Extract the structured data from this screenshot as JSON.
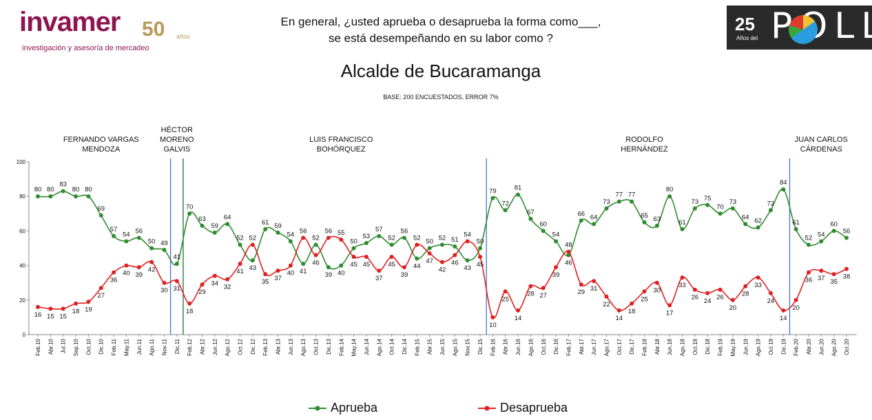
{
  "logo": {
    "name": "invamer",
    "years": "50",
    "years_suffix": "años",
    "tagline": "investigación y asesoría de mercadeo"
  },
  "question": {
    "line1": "En general, ¿usted aprueba o desaprueba la forma como___,",
    "line2": "se está desempeñando en su labor como ?"
  },
  "poll_badge": {
    "number": "25",
    "subtitle": "Años del",
    "word": "POLL"
  },
  "chart_data": {
    "type": "line",
    "title": "Alcalde de Bucaramanga",
    "subtitle": "BASE: 200 ENCUESTADOS, ERROR 7%",
    "xlabel": "",
    "ylabel": "",
    "ylim": [
      0,
      100
    ],
    "yticks": [
      "0",
      "20",
      "40",
      "60",
      "80",
      "100"
    ],
    "grid": false,
    "legend_position": "bottom",
    "categories": [
      "Feb.10",
      "Abr.10",
      "Jul.10",
      "Sep.10",
      "Oct.10",
      "Dic.10",
      "Feb.11",
      "May.11",
      "Jun.11",
      "Ago.11",
      "Nov.11",
      "Dic.11",
      "Feb.12",
      "Abr.12",
      "Jun.12",
      "Ago.12",
      "Oct.12",
      "Dic.12",
      "Feb.13",
      "Abr.13",
      "Jun.13",
      "Ago.13",
      "Oct.13",
      "Dic.13",
      "Feb.14",
      "May.14",
      "Jun.14",
      "Ago.14",
      "Oct.14",
      "Dic.14",
      "Feb.15",
      "Abr.15",
      "Jun.15",
      "Ago.15",
      "Nov.15",
      "Dic.15",
      "Feb.16",
      "Abr.16",
      "Jun.16",
      "Ago.16",
      "Oct.16",
      "Dic.16",
      "Feb.17",
      "Abr.17",
      "Jun.17",
      "Ago.17",
      "Oct.17",
      "Dic.17",
      "Feb.18",
      "Abr.18",
      "Jun.18",
      "Ago.18",
      "Oct.18",
      "Dic.18",
      "Feb.19",
      "May.19",
      "Jun.19",
      "Ago.19",
      "Oct.19",
      "Dic.19",
      "Feb.20",
      "Abr.20",
      "Jun.20",
      "Ago.20",
      "Oct.20"
    ],
    "series": [
      {
        "name": "Aprueba",
        "color": "#2e8b2e",
        "values": [
          80,
          80,
          83,
          80,
          80,
          69,
          57,
          54,
          56,
          50,
          49,
          41,
          70,
          63,
          59,
          64,
          52,
          43,
          61,
          59,
          54,
          41,
          52,
          39,
          40,
          50,
          53,
          57,
          52,
          56,
          44,
          50,
          52,
          51,
          43,
          50,
          79,
          72,
          81,
          67,
          60,
          54,
          46,
          66,
          64,
          73,
          77,
          77,
          65,
          63,
          80,
          61,
          73,
          75,
          70,
          73,
          64,
          62,
          72,
          84,
          61,
          52,
          54,
          60,
          56
        ]
      },
      {
        "name": "Desaprueba",
        "color": "#e02020",
        "values": [
          16,
          15,
          15,
          18,
          19,
          27,
          36,
          40,
          39,
          42,
          30,
          31,
          18,
          29,
          34,
          32,
          41,
          52,
          35,
          37,
          40,
          56,
          46,
          56,
          55,
          45,
          45,
          37,
          45,
          39,
          52,
          47,
          42,
          46,
          54,
          45,
          10,
          25,
          14,
          28,
          27,
          39,
          48,
          29,
          31,
          22,
          14,
          18,
          25,
          30,
          17,
          33,
          26,
          24,
          26,
          20,
          28,
          33,
          24,
          14,
          20,
          36,
          37,
          35,
          38
        ]
      }
    ],
    "annotations": [
      {
        "label_lines": [
          "FERNANDO VARGAS",
          "MENDOZA"
        ],
        "start": 0,
        "end": 10
      },
      {
        "label_lines": [
          "HÉCTOR",
          "MORENO",
          "GALVIS"
        ],
        "start": 10,
        "end": 12
      },
      {
        "label_lines": [
          "LUIS FRANCISCO",
          "BOHÓRQUEZ"
        ],
        "start": 12,
        "end": 36
      },
      {
        "label_lines": [
          "RODOLFO",
          "HERNÁNDEZ"
        ],
        "start": 36,
        "end": 60
      },
      {
        "label_lines": [
          "JUAN CARLOS",
          "CÁRDENAS"
        ],
        "start": 60,
        "end": 64
      }
    ],
    "dividers": [
      {
        "after_index": 10,
        "color": "#4472c4"
      },
      {
        "after_index": 11,
        "color": "#1f6b3a"
      },
      {
        "after_index": 35,
        "color": "#4472c4"
      },
      {
        "after_index": 59,
        "color": "#4472c4"
      }
    ]
  }
}
